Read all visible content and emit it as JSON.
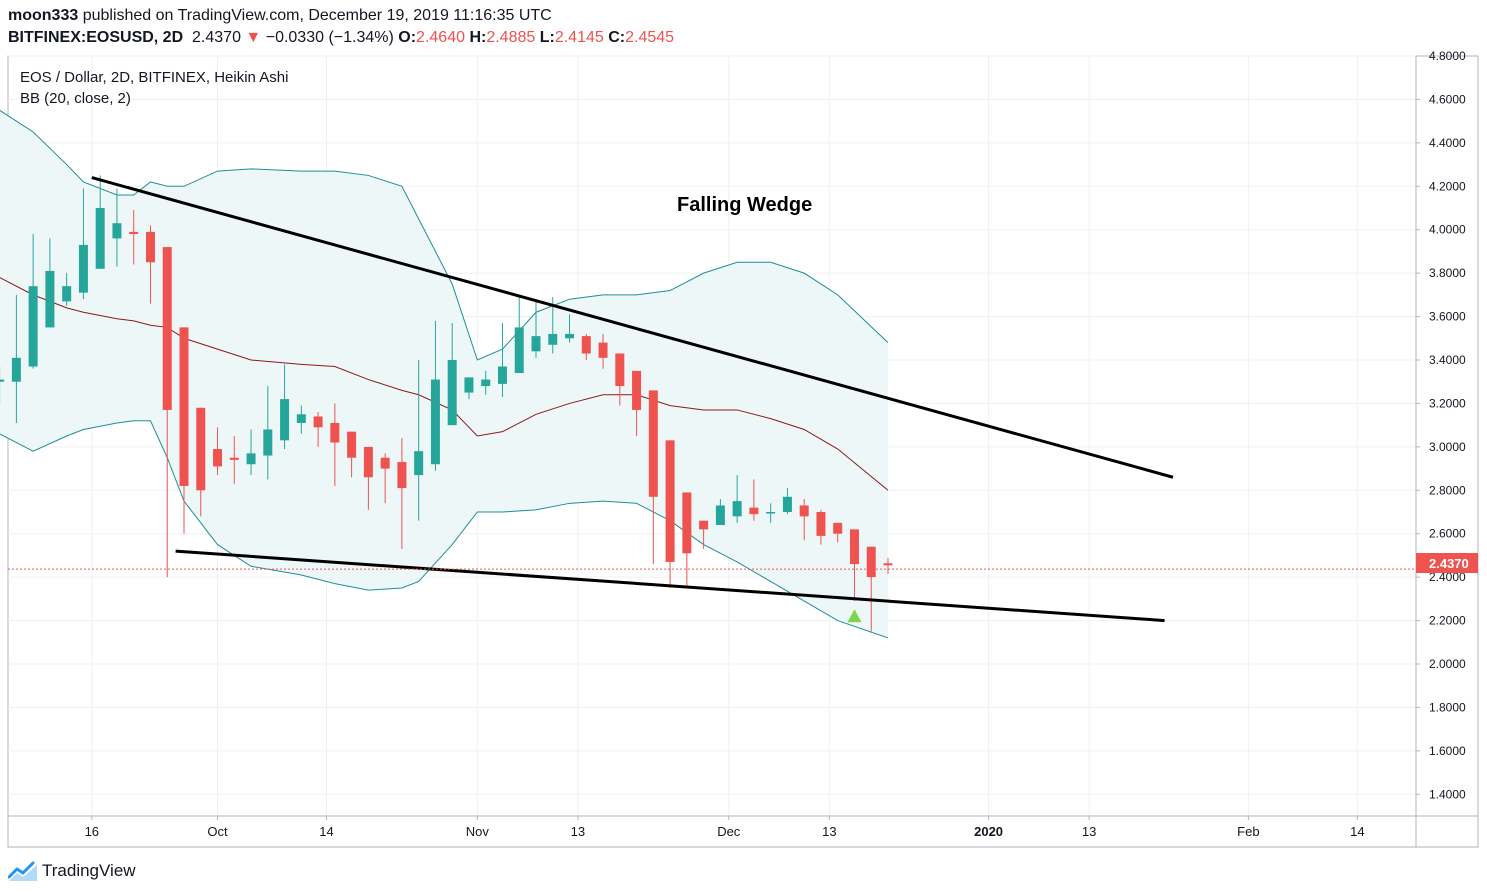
{
  "header": {
    "author": "moon333",
    "published_text": "published on TradingView.com, December 19, 2019 11:16:35 UTC",
    "symbol": "BITFINEX:EOSUSD, 2D",
    "last": "2.4370",
    "change": "−0.0330 (−1.34%)",
    "o_label": "O:",
    "o_value": "2.4640",
    "h_label": "H:",
    "h_value": "2.4885",
    "l_label": "L:",
    "l_value": "2.4145",
    "c_label": "C:",
    "c_value": "2.4545"
  },
  "legend": {
    "series_title": "EOS / Dollar, 2D, BITFINEX, Heikin Ashi",
    "indicator": "BB (20, close, 2)"
  },
  "annotation": "Falling Wedge",
  "price_tag": "2.4370",
  "footer": {
    "brand": "TradingView"
  },
  "colors": {
    "up": "#26a69a",
    "down": "#ef5350",
    "band": "#1e8f95",
    "basis": "#8b1a1a",
    "band_fill": "#eef7f7",
    "grid": "#eef0f3",
    "trendline": "#000000",
    "signal": "#7ed34f"
  },
  "chart_data": {
    "type": "candlestick",
    "chart_style": "Heikin Ashi",
    "interval": "2D",
    "ylim": [
      1.3,
      4.8
    ],
    "y_ticks": [
      "4.8000",
      "4.6000",
      "4.4000",
      "4.2000",
      "4.0000",
      "3.8000",
      "3.6000",
      "3.4000",
      "3.2000",
      "3.0000",
      "2.8000",
      "2.6000",
      "2.4000",
      "2.2000",
      "2.0000",
      "1.8000",
      "1.6000",
      "1.4000"
    ],
    "x_ticks": [
      "16",
      "Oct",
      "14",
      "Nov",
      "13",
      "Dec",
      "13",
      "2020",
      "13",
      "Feb",
      "14"
    ],
    "x_range": [
      "2019-09-06",
      "2020-02-21"
    ],
    "x_tick_dates": [
      "2019-09-16",
      "2019-10-01",
      "2019-10-14",
      "2019-11-01",
      "2019-11-13",
      "2019-12-01",
      "2019-12-13",
      "2020-01-01",
      "2020-01-13",
      "2020-02-01",
      "2020-02-14"
    ],
    "candles": [
      {
        "date": "2019-09-05",
        "o": 3.3,
        "h": 3.37,
        "l": 3.2,
        "c": 3.31
      },
      {
        "date": "2019-09-07",
        "o": 3.3,
        "h": 3.7,
        "l": 3.11,
        "c": 3.41
      },
      {
        "date": "2019-09-09",
        "o": 3.37,
        "h": 3.98,
        "l": 3.36,
        "c": 3.74
      },
      {
        "date": "2019-09-11",
        "o": 3.55,
        "h": 3.96,
        "l": 3.55,
        "c": 3.81
      },
      {
        "date": "2019-09-13",
        "o": 3.67,
        "h": 3.8,
        "l": 3.65,
        "c": 3.74
      },
      {
        "date": "2019-09-15",
        "o": 3.71,
        "h": 4.19,
        "l": 3.68,
        "c": 3.93
      },
      {
        "date": "2019-09-17",
        "o": 3.82,
        "h": 4.25,
        "l": 3.82,
        "c": 4.1
      },
      {
        "date": "2019-09-19",
        "o": 3.96,
        "h": 4.19,
        "l": 3.83,
        "c": 4.03
      },
      {
        "date": "2019-09-21",
        "o": 3.99,
        "h": 4.09,
        "l": 3.84,
        "c": 3.98
      },
      {
        "date": "2019-09-23",
        "o": 3.99,
        "h": 4.02,
        "l": 3.66,
        "c": 3.85
      },
      {
        "date": "2019-09-25",
        "o": 3.92,
        "h": 3.92,
        "l": 2.4,
        "c": 3.17
      },
      {
        "date": "2019-09-27",
        "o": 3.55,
        "h": 3.55,
        "l": 2.6,
        "c": 2.82
      },
      {
        "date": "2019-09-29",
        "o": 3.18,
        "h": 3.18,
        "l": 2.68,
        "c": 2.8
      },
      {
        "date": "2019-10-01",
        "o": 2.99,
        "h": 3.09,
        "l": 2.87,
        "c": 2.91
      },
      {
        "date": "2019-10-03",
        "o": 2.95,
        "h": 3.05,
        "l": 2.83,
        "c": 2.94
      },
      {
        "date": "2019-10-05",
        "o": 2.92,
        "h": 3.08,
        "l": 2.87,
        "c": 2.97
      },
      {
        "date": "2019-10-07",
        "o": 2.96,
        "h": 3.28,
        "l": 2.85,
        "c": 3.08
      },
      {
        "date": "2019-10-09",
        "o": 3.03,
        "h": 3.38,
        "l": 2.99,
        "c": 3.22
      },
      {
        "date": "2019-10-11",
        "o": 3.11,
        "h": 3.19,
        "l": 3.06,
        "c": 3.15
      },
      {
        "date": "2019-10-13",
        "o": 3.14,
        "h": 3.16,
        "l": 3.0,
        "c": 3.09
      },
      {
        "date": "2019-10-15",
        "o": 3.11,
        "h": 3.2,
        "l": 2.82,
        "c": 3.02
      },
      {
        "date": "2019-10-17",
        "o": 3.07,
        "h": 3.07,
        "l": 2.86,
        "c": 2.95
      },
      {
        "date": "2019-10-19",
        "o": 3.0,
        "h": 3.0,
        "l": 2.71,
        "c": 2.86
      },
      {
        "date": "2019-10-21",
        "o": 2.95,
        "h": 2.97,
        "l": 2.74,
        "c": 2.9
      },
      {
        "date": "2019-10-23",
        "o": 2.93,
        "h": 3.04,
        "l": 2.53,
        "c": 2.81
      },
      {
        "date": "2019-10-25",
        "o": 2.87,
        "h": 3.4,
        "l": 2.66,
        "c": 2.98
      },
      {
        "date": "2019-10-27",
        "o": 2.92,
        "h": 3.58,
        "l": 2.89,
        "c": 3.31
      },
      {
        "date": "2019-10-29",
        "o": 3.1,
        "h": 3.57,
        "l": 3.1,
        "c": 3.4
      },
      {
        "date": "2019-10-31",
        "o": 3.25,
        "h": 3.31,
        "l": 3.22,
        "c": 3.32
      },
      {
        "date": "2019-11-02",
        "o": 3.28,
        "h": 3.35,
        "l": 3.24,
        "c": 3.31
      },
      {
        "date": "2019-11-04",
        "o": 3.29,
        "h": 3.57,
        "l": 3.23,
        "c": 3.37
      },
      {
        "date": "2019-11-06",
        "o": 3.34,
        "h": 3.7,
        "l": 3.34,
        "c": 3.55
      },
      {
        "date": "2019-11-08",
        "o": 3.44,
        "h": 3.67,
        "l": 3.41,
        "c": 3.51
      },
      {
        "date": "2019-11-10",
        "o": 3.47,
        "h": 3.69,
        "l": 3.43,
        "c": 3.52
      },
      {
        "date": "2019-11-12",
        "o": 3.5,
        "h": 3.61,
        "l": 3.48,
        "c": 3.52
      },
      {
        "date": "2019-11-14",
        "o": 3.51,
        "h": 3.52,
        "l": 3.4,
        "c": 3.43
      },
      {
        "date": "2019-11-16",
        "o": 3.48,
        "h": 3.52,
        "l": 3.36,
        "c": 3.41
      },
      {
        "date": "2019-11-18",
        "o": 3.43,
        "h": 3.43,
        "l": 3.19,
        "c": 3.28
      },
      {
        "date": "2019-11-20",
        "o": 3.35,
        "h": 3.35,
        "l": 3.05,
        "c": 3.17
      },
      {
        "date": "2019-11-22",
        "o": 3.26,
        "h": 3.26,
        "l": 2.46,
        "c": 2.77
      },
      {
        "date": "2019-11-24",
        "o": 3.03,
        "h": 3.03,
        "l": 2.35,
        "c": 2.47
      },
      {
        "date": "2019-11-26",
        "o": 2.79,
        "h": 2.79,
        "l": 2.35,
        "c": 2.51
      },
      {
        "date": "2019-11-28",
        "o": 2.66,
        "h": 2.66,
        "l": 2.53,
        "c": 2.62
      },
      {
        "date": "2019-11-30",
        "o": 2.64,
        "h": 2.76,
        "l": 2.64,
        "c": 2.73
      },
      {
        "date": "2019-12-02",
        "o": 2.68,
        "h": 2.87,
        "l": 2.65,
        "c": 2.75
      },
      {
        "date": "2019-12-04",
        "o": 2.72,
        "h": 2.85,
        "l": 2.66,
        "c": 2.69
      },
      {
        "date": "2019-12-06",
        "o": 2.7,
        "h": 2.74,
        "l": 2.65,
        "c": 2.7
      },
      {
        "date": "2019-12-08",
        "o": 2.7,
        "h": 2.81,
        "l": 2.69,
        "c": 2.77
      },
      {
        "date": "2019-12-10",
        "o": 2.73,
        "h": 2.76,
        "l": 2.57,
        "c": 2.68
      },
      {
        "date": "2019-12-12",
        "o": 2.7,
        "h": 2.71,
        "l": 2.55,
        "c": 2.59
      },
      {
        "date": "2019-12-14",
        "o": 2.65,
        "h": 2.65,
        "l": 2.56,
        "c": 2.6
      },
      {
        "date": "2019-12-16",
        "o": 2.62,
        "h": 2.62,
        "l": 2.29,
        "c": 2.46
      },
      {
        "date": "2019-12-18",
        "o": 2.54,
        "h": 2.54,
        "l": 2.15,
        "c": 2.4
      },
      {
        "date": "2019-12-20",
        "o": 2.464,
        "h": 2.4885,
        "l": 2.4145,
        "c": 2.4545
      }
    ],
    "bollinger": {
      "dates": [
        "2019-09-05",
        "2019-09-09",
        "2019-09-13",
        "2019-09-15",
        "2019-09-19",
        "2019-09-21",
        "2019-09-23",
        "2019-09-25",
        "2019-09-27",
        "2019-10-01",
        "2019-10-05",
        "2019-10-11",
        "2019-10-15",
        "2019-10-19",
        "2019-10-23",
        "2019-10-25",
        "2019-10-29",
        "2019-11-01",
        "2019-11-04",
        "2019-11-08",
        "2019-11-12",
        "2019-11-16",
        "2019-11-20",
        "2019-11-24",
        "2019-11-28",
        "2019-12-02",
        "2019-12-06",
        "2019-12-10",
        "2019-12-14",
        "2019-12-20"
      ],
      "upper": [
        4.55,
        4.45,
        4.3,
        4.22,
        4.16,
        4.16,
        4.22,
        4.2,
        4.2,
        4.27,
        4.28,
        4.27,
        4.27,
        4.25,
        4.2,
        4.05,
        3.75,
        3.4,
        3.45,
        3.62,
        3.68,
        3.7,
        3.7,
        3.72,
        3.8,
        3.85,
        3.85,
        3.8,
        3.7,
        3.48
      ],
      "basis": [
        3.78,
        3.7,
        3.64,
        3.62,
        3.59,
        3.58,
        3.56,
        3.55,
        3.5,
        3.45,
        3.4,
        3.38,
        3.37,
        3.31,
        3.26,
        3.24,
        3.17,
        3.05,
        3.07,
        3.15,
        3.2,
        3.24,
        3.24,
        3.19,
        3.17,
        3.17,
        3.13,
        3.08,
        2.99,
        2.8
      ],
      "lower": [
        3.06,
        2.98,
        3.05,
        3.08,
        3.11,
        3.12,
        3.12,
        2.95,
        2.75,
        2.55,
        2.45,
        2.41,
        2.37,
        2.34,
        2.35,
        2.38,
        2.55,
        2.7,
        2.7,
        2.71,
        2.74,
        2.75,
        2.74,
        2.66,
        2.55,
        2.47,
        2.38,
        2.29,
        2.2,
        2.12
      ]
    },
    "trendlines": [
      {
        "from": {
          "date": "2019-09-16",
          "price": 4.24
        },
        "to": {
          "date": "2020-01-23",
          "price": 2.86
        }
      },
      {
        "from": {
          "date": "2019-09-26",
          "price": 2.52
        },
        "to": {
          "date": "2020-01-22",
          "price": 2.2
        }
      }
    ],
    "markers": [
      {
        "type": "triangle-up",
        "date": "2019-12-16",
        "price": 2.22
      }
    ],
    "last_price": 2.437
  }
}
